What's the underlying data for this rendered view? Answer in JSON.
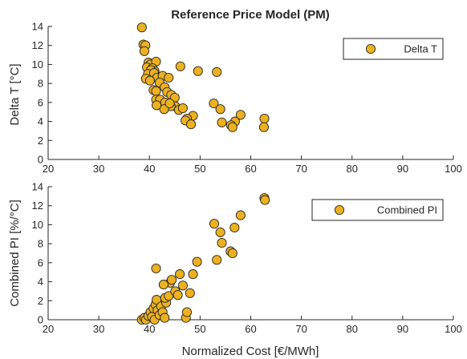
{
  "figure": {
    "title": "Reference Price Model (PM)",
    "xlabel": "Normalized Cost [€/MWh]"
  },
  "colors": {
    "marker_fill": "#EDB120",
    "marker_edge": "#262626",
    "axis": "#262626",
    "background": "#ffffff"
  },
  "chart_data": [
    {
      "type": "scatter",
      "ylabel": "Delta T [°C]",
      "xlim": [
        20,
        100
      ],
      "ylim": [
        0,
        14
      ],
      "xticks": [
        20,
        30,
        40,
        50,
        60,
        70,
        80,
        90,
        100
      ],
      "yticks": [
        0,
        2,
        4,
        6,
        8,
        10,
        12,
        14
      ],
      "legend": {
        "position": "top-right",
        "entries": [
          "Delta T"
        ]
      },
      "grid": false,
      "series": [
        {
          "name": "Delta T",
          "points": [
            [
              38.5,
              13.9
            ],
            [
              38.8,
              12.1
            ],
            [
              39.2,
              12.0
            ],
            [
              39.0,
              11.4
            ],
            [
              39.8,
              10.2
            ],
            [
              40.2,
              10.0
            ],
            [
              41.3,
              10.3
            ],
            [
              39.5,
              9.7
            ],
            [
              40.6,
              9.6
            ],
            [
              41.0,
              9.3
            ],
            [
              40.3,
              9.4
            ],
            [
              39.7,
              9.0
            ],
            [
              40.9,
              9.1
            ],
            [
              41.5,
              8.6
            ],
            [
              39.3,
              8.5
            ],
            [
              40.1,
              8.3
            ],
            [
              42.6,
              8.8
            ],
            [
              43.8,
              8.6
            ],
            [
              42.0,
              8.1
            ],
            [
              43.0,
              7.6
            ],
            [
              40.8,
              7.3
            ],
            [
              41.3,
              7.2
            ],
            [
              43.5,
              7.1
            ],
            [
              44.3,
              6.8
            ],
            [
              45.0,
              6.5
            ],
            [
              41.3,
              6.3
            ],
            [
              42.1,
              6.3
            ],
            [
              43.1,
              6.0
            ],
            [
              45.1,
              5.6
            ],
            [
              44.2,
              5.6
            ],
            [
              42.9,
              5.3
            ],
            [
              41.4,
              5.7
            ],
            [
              44.0,
              5.9
            ],
            [
              45.8,
              5.2
            ],
            [
              46.6,
              5.4
            ],
            [
              46.1,
              9.8
            ],
            [
              49.6,
              9.3
            ],
            [
              53.3,
              9.2
            ],
            [
              52.7,
              5.9
            ],
            [
              48.6,
              4.6
            ],
            [
              47.4,
              4.3
            ],
            [
              47.1,
              4.1
            ],
            [
              48.2,
              3.7
            ],
            [
              54.0,
              5.3
            ],
            [
              54.3,
              3.9
            ],
            [
              56.9,
              4.0
            ],
            [
              58.0,
              4.7
            ],
            [
              56.1,
              3.6
            ],
            [
              56.4,
              3.4
            ],
            [
              62.7,
              4.3
            ],
            [
              62.6,
              3.4
            ]
          ]
        }
      ]
    },
    {
      "type": "scatter",
      "ylabel": "Combined PI [%/°C]",
      "xlim": [
        20,
        100
      ],
      "ylim": [
        0,
        14
      ],
      "xticks": [
        20,
        30,
        40,
        50,
        60,
        70,
        80,
        90,
        100
      ],
      "yticks": [
        0,
        2,
        4,
        6,
        8,
        10,
        12,
        14
      ],
      "legend": {
        "position": "top-right",
        "entries": [
          "Combined PI"
        ]
      },
      "grid": false,
      "series": [
        {
          "name": "Combined PI",
          "points": [
            [
              38.5,
              0.0
            ],
            [
              39.0,
              0.2
            ],
            [
              39.3,
              0.0
            ],
            [
              39.8,
              0.4
            ],
            [
              40.2,
              0.8
            ],
            [
              40.5,
              0.3
            ],
            [
              41.0,
              0.0
            ],
            [
              40.8,
              1.2
            ],
            [
              41.2,
              1.6
            ],
            [
              41.6,
              1.0
            ],
            [
              41.4,
              2.1
            ],
            [
              42.0,
              0.5
            ],
            [
              42.3,
              1.4
            ],
            [
              42.6,
              0.8
            ],
            [
              43.0,
              0.2
            ],
            [
              43.3,
              1.8
            ],
            [
              43.1,
              2.3
            ],
            [
              43.8,
              2.5
            ],
            [
              44.1,
              3.9
            ],
            [
              42.8,
              3.7
            ],
            [
              44.4,
              4.2
            ],
            [
              45.1,
              3.0
            ],
            [
              45.6,
              2.6
            ],
            [
              46.0,
              4.8
            ],
            [
              46.6,
              3.6
            ],
            [
              47.2,
              0.2
            ],
            [
              47.4,
              0.8
            ],
            [
              48.0,
              2.8
            ],
            [
              48.6,
              4.8
            ],
            [
              49.4,
              6.1
            ],
            [
              41.3,
              5.4
            ],
            [
              52.8,
              10.1
            ],
            [
              53.3,
              6.3
            ],
            [
              54.0,
              9.2
            ],
            [
              54.3,
              8.1
            ],
            [
              56.0,
              7.2
            ],
            [
              56.4,
              7.0
            ],
            [
              56.8,
              9.7
            ],
            [
              58.0,
              11.0
            ],
            [
              62.7,
              12.8
            ],
            [
              62.8,
              12.6
            ]
          ]
        }
      ]
    }
  ]
}
